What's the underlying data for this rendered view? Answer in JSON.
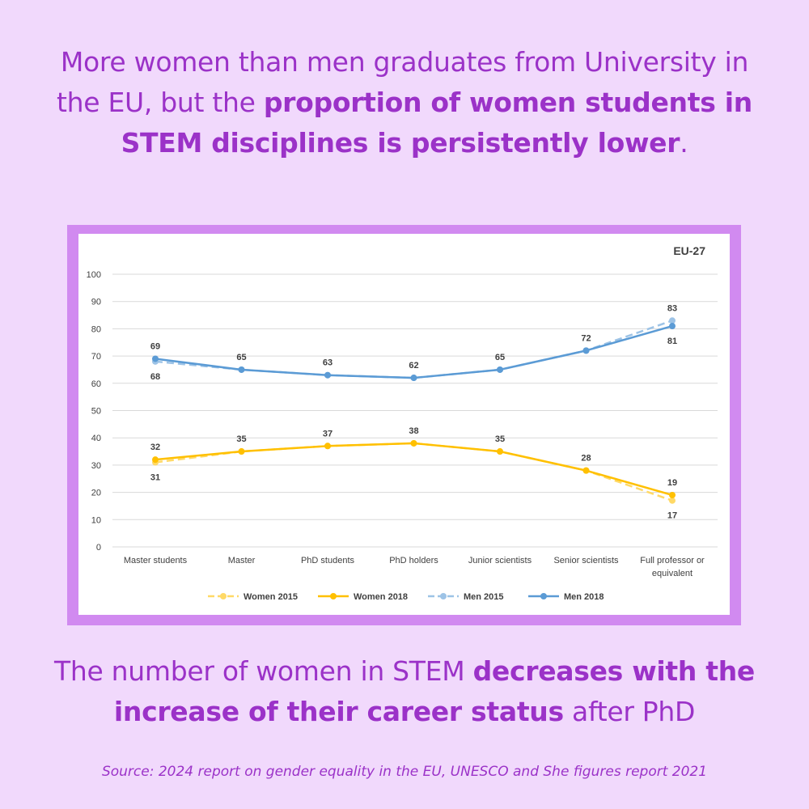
{
  "headline": {
    "part1": "More women than men graduates from University in the EU, but the ",
    "bold": "proportion of women students in STEM disciplines is persistently lower",
    "part2": "."
  },
  "subline": {
    "part1": "The number of women in STEM ",
    "bold": "decreases with the increase of their career status",
    "part2": " after PhD"
  },
  "source": "Source: 2024 report on gender equality in the EU, UNESCO and She figures report 2021",
  "colors": {
    "background": "#f1d9fc",
    "accent": "#9b32c8",
    "frame": "#d18af0",
    "women2015": "#ffd966",
    "women2018": "#ffc000",
    "men2015": "#9dc3e6",
    "men2018": "#5b9bd5"
  },
  "chart_data": {
    "type": "line",
    "region_label": "EU-27",
    "categories": [
      "Master students",
      "Master",
      "PhD students",
      "PhD holders",
      "Junior scientists",
      "Senior scientists",
      "Full professor or equivalent"
    ],
    "ylim": [
      0,
      100
    ],
    "yticks": [
      0,
      10,
      20,
      30,
      40,
      50,
      60,
      70,
      80,
      90,
      100
    ],
    "grid": true,
    "legend_position": "bottom",
    "series": [
      {
        "name": "Women 2015",
        "values": [
          31,
          35,
          37,
          38,
          35,
          28,
          17
        ],
        "labels": [
          31,
          null,
          null,
          null,
          null,
          null,
          17
        ],
        "label_side": "below",
        "dashed": true,
        "color": "#ffd966"
      },
      {
        "name": "Women 2018",
        "values": [
          32,
          35,
          37,
          38,
          35,
          28,
          19
        ],
        "labels": [
          32,
          35,
          37,
          38,
          35,
          28,
          19
        ],
        "label_side": "above",
        "dashed": false,
        "color": "#ffc000"
      },
      {
        "name": "Men 2015",
        "values": [
          68,
          65,
          63,
          62,
          65,
          72,
          83
        ],
        "labels": [
          68,
          null,
          null,
          null,
          null,
          null,
          83
        ],
        "label_side": "mixed",
        "dashed": true,
        "color": "#9dc3e6"
      },
      {
        "name": "Men 2018",
        "values": [
          69,
          65,
          63,
          62,
          65,
          72,
          81
        ],
        "labels": [
          69,
          65,
          63,
          62,
          65,
          72,
          81
        ],
        "label_side": "mixed",
        "dashed": false,
        "color": "#5b9bd5"
      }
    ]
  }
}
